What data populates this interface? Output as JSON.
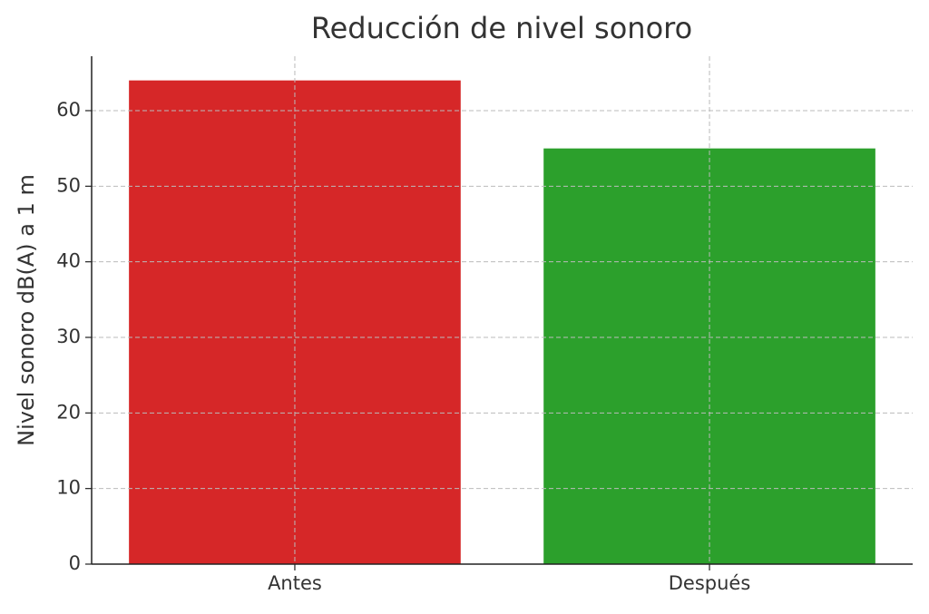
{
  "chart_data": {
    "type": "bar",
    "title": "Reducción de nivel sonoro",
    "y_label": "Nivel sonoro dB(A) a 1 m",
    "categories": [
      "Antes",
      "Después"
    ],
    "values": [
      64,
      55
    ],
    "colors": [
      "#d62728",
      "#2ca02c"
    ],
    "ylim": [
      0,
      67.2
    ],
    "yticks": [
      0,
      10,
      20,
      30,
      40,
      50,
      60
    ],
    "grid": true
  }
}
